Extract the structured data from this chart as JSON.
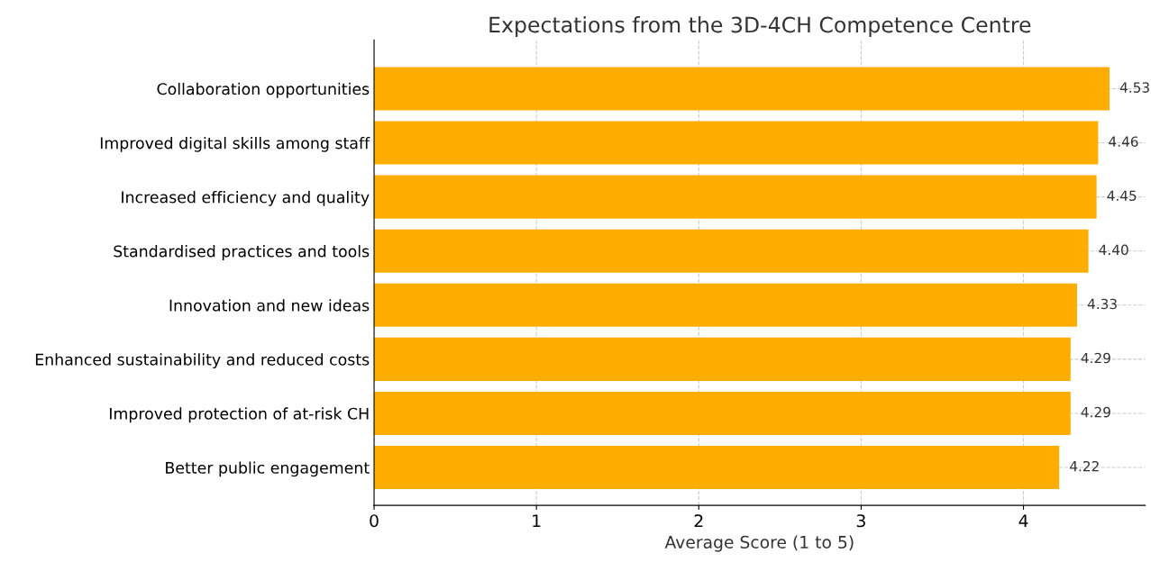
{
  "chart_data": {
    "type": "bar",
    "orientation": "horizontal",
    "title": "Expectations from the 3D-4CH Competence Centre",
    "xlabel": "Average Score (1 to 5)",
    "categories": [
      "Collaboration opportunities",
      "Improved digital skills among staff",
      "Increased efficiency and quality",
      "Standardised practices and tools",
      "Innovation and new ideas",
      "Enhanced sustainability and reduced costs",
      "Improved protection of at-risk CH",
      "Better public engagement"
    ],
    "values": [
      4.53,
      4.46,
      4.45,
      4.4,
      4.33,
      4.29,
      4.29,
      4.22
    ],
    "value_labels": [
      "4.53",
      "4.46",
      "4.45",
      "4.40",
      "4.33",
      "4.29",
      "4.29",
      "4.22"
    ],
    "color": "#ffad00",
    "xlim": [
      0,
      4.75
    ],
    "xticks": [
      0,
      1,
      2,
      3,
      4
    ],
    "grid": true
  }
}
